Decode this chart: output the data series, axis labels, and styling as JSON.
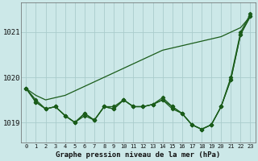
{
  "title": "Graphe pression niveau de la mer (hPa)",
  "background_color": "#cce8e8",
  "grid_color": "#aacccc",
  "line_color": "#1a5c1a",
  "hours": [
    0,
    1,
    2,
    3,
    4,
    5,
    6,
    7,
    8,
    9,
    10,
    11,
    12,
    13,
    14,
    15,
    16,
    17,
    18,
    19,
    20,
    21,
    22,
    23
  ],
  "x_labels": [
    "0",
    "1",
    "2",
    "3",
    "4",
    "5",
    "6",
    "7",
    "8",
    "9",
    "10",
    "11",
    "12",
    "13",
    "14",
    "15",
    "16",
    "17",
    "18",
    "19",
    "20",
    "21",
    "22",
    "23"
  ],
  "series_smooth": [
    1019.75,
    1019.6,
    1019.5,
    1019.55,
    1019.6,
    1019.7,
    1019.8,
    1019.9,
    1020.0,
    1020.1,
    1020.2,
    1020.3,
    1020.4,
    1020.5,
    1020.6,
    1020.65,
    1020.7,
    1020.75,
    1020.8,
    1020.85,
    1020.9,
    1021.0,
    1021.1,
    1021.35
  ],
  "series_a": [
    1019.75,
    1019.5,
    1019.3,
    1019.35,
    1019.15,
    1019.0,
    1019.15,
    1019.05,
    1019.35,
    1019.35,
    1019.5,
    1019.35,
    1019.35,
    1019.4,
    1019.55,
    1019.35,
    1019.2,
    1018.95,
    1018.85,
    1018.95,
    1019.35,
    1020.0,
    1021.0,
    1021.4
  ],
  "series_b": [
    1019.75,
    1019.45,
    1019.3,
    1019.35,
    1019.15,
    1019.0,
    1019.2,
    1019.05,
    1019.35,
    1019.3,
    1019.5,
    1019.35,
    1019.35,
    1019.4,
    1019.5,
    1019.3,
    1019.2,
    1018.95,
    1018.85,
    1018.95,
    1019.35,
    1019.95,
    1020.95,
    1021.35
  ],
  "series_c": [
    1019.75,
    1019.45,
    1019.3,
    1019.35,
    1019.15,
    1019.0,
    1019.2,
    1019.05,
    1019.35,
    1019.3,
    1019.5,
    1019.35,
    1019.35,
    1019.4,
    1019.5,
    1019.35,
    1019.2,
    1018.95,
    1018.85,
    1018.95,
    1019.35,
    1019.95,
    1020.95,
    1021.35
  ],
  "ylim": [
    1018.55,
    1021.65
  ],
  "yticks": [
    1019.0,
    1020.0,
    1021.0
  ],
  "marker": "D",
  "marker_size": 2.2,
  "linewidth": 0.9,
  "smooth_linewidth": 0.9
}
